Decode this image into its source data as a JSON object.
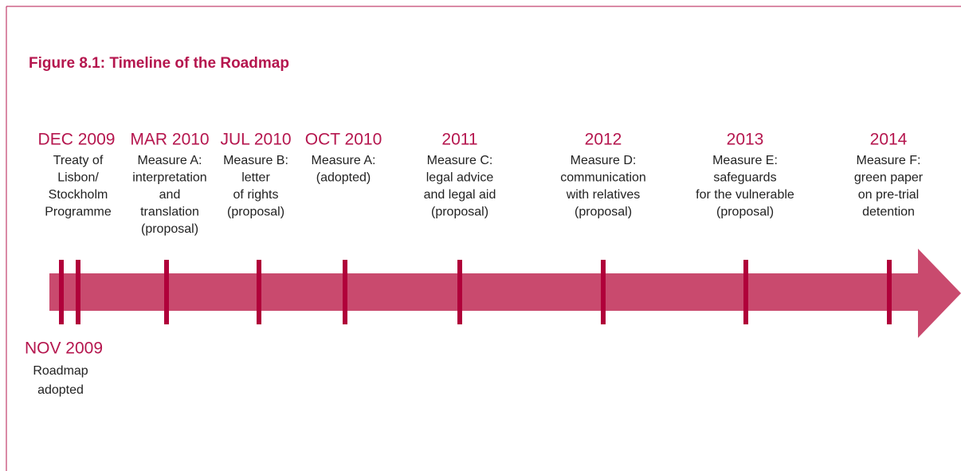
{
  "title": "Figure 8.1: Timeline of the Roadmap",
  "events": [
    {
      "date": "DEC 2009",
      "lines": [
        "Treaty of",
        "Lisbon/",
        "Stockholm",
        "Programme"
      ]
    },
    {
      "date": "MAR 2010",
      "lines": [
        "Measure A:",
        "interpretation",
        "and",
        "translation",
        "(proposal)"
      ]
    },
    {
      "date": "JUL 2010",
      "lines": [
        "Measure B:",
        "letter",
        "of rights",
        "(proposal)"
      ]
    },
    {
      "date": "OCT 2010",
      "lines": [
        "Measure A:",
        "(adopted)"
      ]
    },
    {
      "date": "2011",
      "lines": [
        "Measure C:",
        "legal advice",
        "and legal aid",
        "(proposal)"
      ]
    },
    {
      "date": "2012",
      "lines": [
        "Measure D:",
        "communication",
        "with relatives",
        "(proposal)"
      ]
    },
    {
      "date": "2013",
      "lines": [
        "Measure E:",
        "safeguards",
        "for the vulnerable",
        "(proposal)"
      ]
    },
    {
      "date": "2014",
      "lines": [
        "Measure F:",
        "green paper",
        "on pre-trial",
        "detention"
      ]
    }
  ],
  "below": {
    "date": "NOV 2009",
    "lines": [
      "Roadmap",
      "adopted"
    ]
  }
}
